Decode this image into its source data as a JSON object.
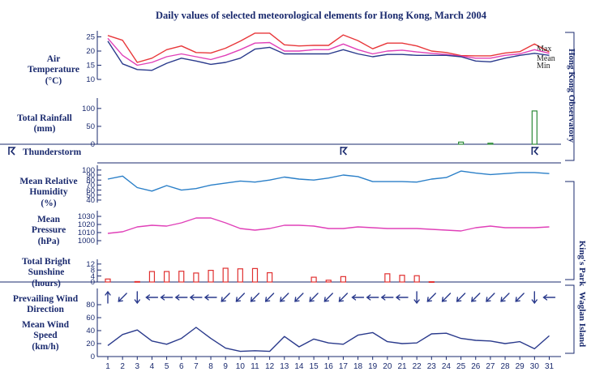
{
  "chart_data": {
    "type": "line",
    "title": "Daily values of selected meteorological elements for Hong Kong, March 2004",
    "x": [
      1,
      2,
      3,
      4,
      5,
      6,
      7,
      8,
      9,
      10,
      11,
      12,
      13,
      14,
      15,
      16,
      17,
      18,
      19,
      20,
      21,
      22,
      23,
      24,
      25,
      26,
      27,
      28,
      29,
      30,
      31
    ],
    "x_labels": [
      "1",
      "2",
      "3",
      "4",
      "5",
      "6",
      "7",
      "8",
      "9",
      "10",
      "11",
      "12",
      "13",
      "14",
      "15",
      "16",
      "17",
      "18",
      "19",
      "20",
      "21",
      "22",
      "23",
      "24",
      "25",
      "26",
      "27",
      "28",
      "29",
      "30",
      "31"
    ],
    "stations": {
      "hko": "Hong Kong Observatory",
      "kp": "King's Park",
      "wg": "Waglan Island"
    },
    "panels": {
      "temperature": {
        "label_lines": [
          "Air",
          "Temperature",
          "(°C)"
        ],
        "ticks": [
          10,
          15,
          20,
          25
        ],
        "ylim": [
          10,
          26
        ],
        "series": [
          {
            "name": "Max",
            "color": "#e8373a",
            "values": [
              25.5,
              23.8,
              16,
              17.5,
              20.5,
              21.8,
              19.5,
              19.3,
              21,
              23.5,
              26.3,
              26.3,
              22.2,
              21.8,
              22,
              22,
              25.7,
              23.7,
              20.8,
              22.8,
              22.8,
              21.8,
              20,
              19.5,
              18.4,
              18.3,
              18.3,
              19.3,
              19.8,
              22.5,
              19.7
            ]
          },
          {
            "name": "Mean",
            "color": "#e040b8",
            "values": [
              24.5,
              18.5,
              15,
              16,
              18,
              19,
              18,
              17,
              18.5,
              20.5,
              22.8,
              23,
              20,
              20,
              20.5,
              20.5,
              22.5,
              20.5,
              19,
              20,
              20.3,
              19.7,
              19.2,
              18.8,
              18.2,
              17.5,
              17.5,
              18.5,
              19,
              20.5,
              19.2
            ]
          },
          {
            "name": "Min",
            "color": "#2a3a8c",
            "values": [
              23.5,
              15.5,
              13.5,
              13.2,
              15.7,
              17.5,
              16.5,
              15.3,
              16,
              17.5,
              20.7,
              21.3,
              19,
              19,
              19,
              19,
              20.5,
              19,
              18,
              18.8,
              18.8,
              18.5,
              18.5,
              18.5,
              18,
              16.5,
              16.2,
              17.5,
              18.5,
              19.2,
              18.5
            ]
          }
        ]
      },
      "rainfall": {
        "label_lines": [
          "Total Rainfall",
          "(mm)"
        ],
        "ticks": [
          0,
          50,
          100
        ],
        "ylim": [
          0,
          120
        ],
        "color": "#2e8b3a",
        "values": [
          0,
          0,
          0,
          0,
          0,
          0,
          0,
          0,
          0,
          0,
          0,
          0,
          0,
          0,
          0,
          0,
          0,
          0,
          0,
          0,
          0,
          0,
          0,
          0,
          6,
          0,
          3,
          0,
          0,
          93,
          0
        ]
      },
      "thunderstorm": {
        "label": "Thunderstorm",
        "days": [
          17,
          30
        ]
      },
      "humidity": {
        "label_lines": [
          "Mean Relative",
          "Humidity",
          "(%)"
        ],
        "ticks": [
          40,
          50,
          60,
          70,
          80,
          90,
          100
        ],
        "ylim": [
          35,
          103
        ],
        "color": "#2a7fc8",
        "values": [
          82,
          88,
          65,
          58,
          69,
          60,
          63,
          70,
          74,
          78,
          76,
          80,
          86,
          82,
          80,
          84,
          90,
          87,
          77,
          77,
          77,
          76,
          82,
          85,
          98,
          94,
          91,
          93,
          95,
          95,
          93
        ]
      },
      "pressure": {
        "label_lines": [
          "Mean",
          "Pressure",
          "(hPa)"
        ],
        "ticks": [
          1000,
          1010,
          1020,
          1030
        ],
        "ylim": [
          995,
          1033
        ],
        "color": "#e040b8",
        "values": [
          1009,
          1011,
          1017,
          1019,
          1018,
          1022,
          1028,
          1028,
          1022,
          1015,
          1013,
          1015,
          1019,
          1019,
          1018,
          1015,
          1015,
          1017,
          1016,
          1015,
          1015,
          1015,
          1014,
          1013,
          1012,
          1016,
          1018,
          1016,
          1016,
          1016,
          1017
        ]
      },
      "sunshine": {
        "label_lines": [
          "Total Bright",
          "Sunshine",
          "(hours)"
        ],
        "ticks": [
          0,
          4,
          8,
          12
        ],
        "ylim": [
          0,
          13
        ],
        "color": "#e03030",
        "values": [
          2,
          0,
          0.3,
          7,
          7,
          7.2,
          6,
          7.8,
          9.2,
          8.8,
          9,
          6.2,
          0,
          0,
          3.2,
          1.2,
          3.6,
          0,
          0,
          5.5,
          4.5,
          4.2,
          0.2,
          0,
          0,
          0,
          0,
          0,
          0,
          0,
          0
        ]
      },
      "wind_direction": {
        "label_lines": [
          "Prevailing Wind",
          "Direction"
        ],
        "color": "#2a3a8c",
        "directions_from_deg": [
          180,
          45,
          360,
          90,
          90,
          90,
          90,
          90,
          45,
          45,
          45,
          45,
          45,
          45,
          45,
          45,
          45,
          90,
          90,
          90,
          90,
          360,
          45,
          45,
          45,
          45,
          45,
          45,
          45,
          360,
          90
        ]
      },
      "wind_speed": {
        "label_lines": [
          "Mean Wind",
          "Speed",
          "(km/h)"
        ],
        "ticks": [
          0,
          20,
          40,
          60,
          80
        ],
        "ylim": [
          0,
          100
        ],
        "color": "#2a3a8c",
        "values": [
          17,
          34,
          41,
          24,
          19,
          28,
          45,
          28,
          13,
          8,
          9,
          8,
          31,
          15,
          27,
          21,
          19,
          33,
          37,
          23,
          20,
          21,
          35,
          36,
          28,
          25,
          24,
          20,
          23,
          12,
          32
        ]
      }
    }
  }
}
